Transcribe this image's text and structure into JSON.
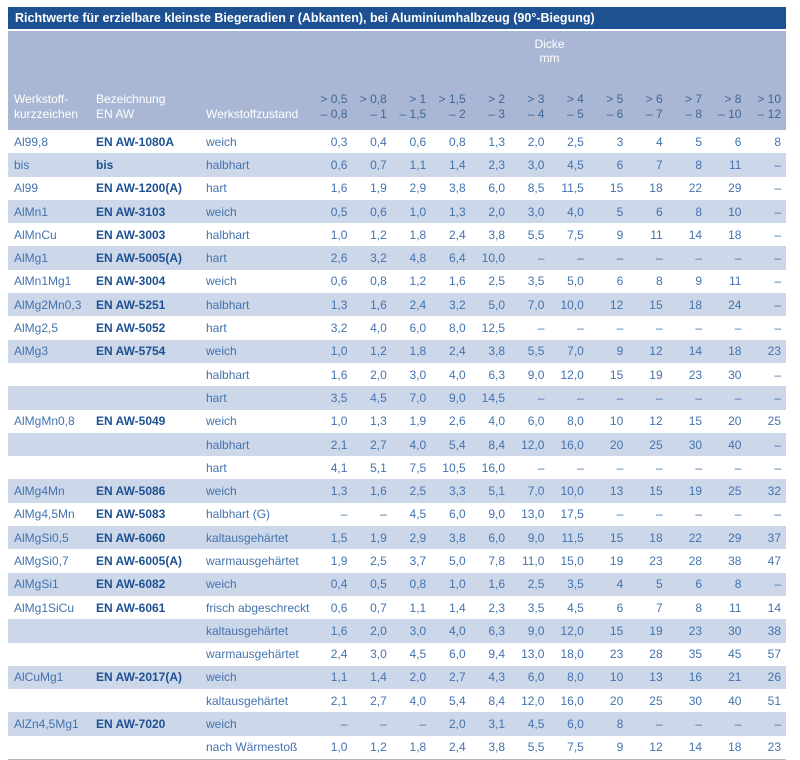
{
  "title": "Richtwerte für erzielbare kleinste Biegeradien r (Abkanten), bei Aluminiumhalbzeug (90°-Biegung)",
  "colors": {
    "title_bar_bg": "#1d5192",
    "title_text": "#ffffff",
    "header_band_bg": "#a9b7d4",
    "header_label_text": "#ffffff",
    "header_range_text": "#3f6798",
    "row_shaded_bg": "#cdd7ea",
    "row_plain_bg": "#ffffff",
    "body_text": "#4373ae",
    "bold_designation_text": "#1d5192",
    "bottom_rule": "#b0b7c3"
  },
  "table": {
    "group_header": {
      "line1": "Dicke",
      "line2": "mm"
    },
    "col_headers": {
      "alloy_line1": "Werkstoff-",
      "alloy_line2": "kurzzeichen",
      "designation_line1": "Bezeichnung",
      "designation_line2": "EN AW",
      "condition": "Werkstoffzustand"
    },
    "thickness_ranges": [
      {
        "gt": "> 0,5",
        "to": "– 0,8"
      },
      {
        "gt": "> 0,8",
        "to": "– 1"
      },
      {
        "gt": "> 1",
        "to": "– 1,5"
      },
      {
        "gt": "> 1,5",
        "to": "– 2"
      },
      {
        "gt": "> 2",
        "to": "– 3"
      },
      {
        "gt": "> 3",
        "to": "– 4"
      },
      {
        "gt": "> 4",
        "to": "– 5"
      },
      {
        "gt": "> 5",
        "to": "– 6"
      },
      {
        "gt": "> 6",
        "to": "– 7"
      },
      {
        "gt": "> 7",
        "to": "– 8"
      },
      {
        "gt": "> 8",
        "to": "– 10"
      },
      {
        "gt": "> 10",
        "to": "– 12"
      }
    ],
    "rows": [
      {
        "alloy": "Al99,8",
        "en_aw": "EN AW-1080A",
        "condition": "weich",
        "values": [
          "0,3",
          "0,4",
          "0,6",
          "0,8",
          "1,3",
          "2,0",
          "2,5",
          "3",
          "4",
          "5",
          "6",
          "8"
        ]
      },
      {
        "alloy": "bis",
        "en_aw": "bis",
        "condition": "halbhart",
        "values": [
          "0,6",
          "0,7",
          "1,1",
          "1,4",
          "2,3",
          "3,0",
          "4,5",
          "6",
          "7",
          "8",
          "11",
          "–"
        ]
      },
      {
        "alloy": "Al99",
        "en_aw": "EN AW-1200(A)",
        "condition": "hart",
        "values": [
          "1,6",
          "1,9",
          "2,9",
          "3,8",
          "6,0",
          "8,5",
          "11,5",
          "15",
          "18",
          "22",
          "29",
          "–"
        ]
      },
      {
        "alloy": "AlMn1",
        "en_aw": "EN AW-3103",
        "condition": "weich",
        "values": [
          "0,5",
          "0,6",
          "1,0",
          "1,3",
          "2,0",
          "3,0",
          "4,0",
          "5",
          "6",
          "8",
          "10",
          "–"
        ]
      },
      {
        "alloy": "AlMnCu",
        "en_aw": "EN AW-3003",
        "condition": "halbhart",
        "values": [
          "1,0",
          "1,2",
          "1,8",
          "2,4",
          "3,8",
          "5,5",
          "7,5",
          "9",
          "11",
          "14",
          "18",
          "–"
        ]
      },
      {
        "alloy": "AlMg1",
        "en_aw": "EN AW-5005(A)",
        "condition": "hart",
        "values": [
          "2,6",
          "3,2",
          "4,8",
          "6,4",
          "10,0",
          "–",
          "–",
          "–",
          "–",
          "–",
          "–",
          "–"
        ]
      },
      {
        "alloy": "AlMn1Mg1",
        "en_aw": "EN AW-3004",
        "condition": "weich",
        "values": [
          "0,6",
          "0,8",
          "1,2",
          "1,6",
          "2,5",
          "3,5",
          "5,0",
          "6",
          "8",
          "9",
          "11",
          "–"
        ]
      },
      {
        "alloy": "AlMg2Mn0,3",
        "en_aw": "EN AW-5251",
        "condition": "halbhart",
        "values": [
          "1,3",
          "1,6",
          "2,4",
          "3,2",
          "5,0",
          "7,0",
          "10,0",
          "12",
          "15",
          "18",
          "24",
          "–"
        ]
      },
      {
        "alloy": "AlMg2,5",
        "en_aw": "EN AW-5052",
        "condition": "hart",
        "values": [
          "3,2",
          "4,0",
          "6,0",
          "8,0",
          "12,5",
          "–",
          "–",
          "–",
          "–",
          "–",
          "–",
          "–"
        ]
      },
      {
        "alloy": "AlMg3",
        "en_aw": "EN AW-5754",
        "condition": "weich",
        "values": [
          "1,0",
          "1,2",
          "1,8",
          "2,4",
          "3,8",
          "5,5",
          "7,0",
          "9",
          "12",
          "14",
          "18",
          "23"
        ]
      },
      {
        "alloy": "",
        "en_aw": "",
        "condition": "halbhart",
        "values": [
          "1,6",
          "2,0",
          "3,0",
          "4,0",
          "6,3",
          "9,0",
          "12,0",
          "15",
          "19",
          "23",
          "30",
          "–"
        ]
      },
      {
        "alloy": "",
        "en_aw": "",
        "condition": "hart",
        "values": [
          "3,5",
          "4,5",
          "7,0",
          "9,0",
          "14,5",
          "–",
          "–",
          "–",
          "–",
          "–",
          "–",
          "–"
        ]
      },
      {
        "alloy": "AlMgMn0,8",
        "en_aw": "EN AW-5049",
        "condition": "weich",
        "values": [
          "1,0",
          "1,3",
          "1,9",
          "2,6",
          "4,0",
          "6,0",
          "8,0",
          "10",
          "12",
          "15",
          "20",
          "25"
        ]
      },
      {
        "alloy": "",
        "en_aw": "",
        "condition": "halbhart",
        "values": [
          "2,1",
          "2,7",
          "4,0",
          "5,4",
          "8,4",
          "12,0",
          "16,0",
          "20",
          "25",
          "30",
          "40",
          "–"
        ]
      },
      {
        "alloy": "",
        "en_aw": "",
        "condition": "hart",
        "values": [
          "4,1",
          "5,1",
          "7,5",
          "10,5",
          "16,0",
          "–",
          "–",
          "–",
          "–",
          "–",
          "–",
          "–"
        ]
      },
      {
        "alloy": "AlMg4Mn",
        "en_aw": "EN AW-5086",
        "condition": "weich",
        "values": [
          "1,3",
          "1,6",
          "2,5",
          "3,3",
          "5,1",
          "7,0",
          "10,0",
          "13",
          "15",
          "19",
          "25",
          "32"
        ]
      },
      {
        "alloy": "AlMg4,5Mn",
        "en_aw": "EN AW-5083",
        "condition": "halbhart (G)",
        "values": [
          "–",
          "–",
          "4,5",
          "6,0",
          "9,0",
          "13,0",
          "17,5",
          "–",
          "–",
          "–",
          "–",
          "–"
        ]
      },
      {
        "alloy": "AlMgSi0,5",
        "en_aw": "EN AW-6060",
        "condition": "kaltausgehärtet",
        "values": [
          "1,5",
          "1,9",
          "2,9",
          "3,8",
          "6,0",
          "9,0",
          "11,5",
          "15",
          "18",
          "22",
          "29",
          "37"
        ]
      },
      {
        "alloy": "AlMgSi0,7",
        "en_aw": "EN AW-6005(A)",
        "condition": "warmausgehärtet",
        "values": [
          "1,9",
          "2,5",
          "3,7",
          "5,0",
          "7,8",
          "11,0",
          "15,0",
          "19",
          "23",
          "28",
          "38",
          "47"
        ]
      },
      {
        "alloy": "AlMgSi1",
        "en_aw": "EN AW-6082",
        "condition": "weich",
        "values": [
          "0,4",
          "0,5",
          "0,8",
          "1,0",
          "1,6",
          "2,5",
          "3,5",
          "4",
          "5",
          "6",
          "8",
          "–"
        ]
      },
      {
        "alloy": "AlMg1SiCu",
        "en_aw": "EN AW-6061",
        "condition": "frisch abgeschreckt",
        "values": [
          "0,6",
          "0,7",
          "1,1",
          "1,4",
          "2,3",
          "3,5",
          "4,5",
          "6",
          "7",
          "8",
          "11",
          "14"
        ]
      },
      {
        "alloy": "",
        "en_aw": "",
        "condition": "kaltausgehärtet",
        "values": [
          "1,6",
          "2,0",
          "3,0",
          "4,0",
          "6,3",
          "9,0",
          "12,0",
          "15",
          "19",
          "23",
          "30",
          "38"
        ]
      },
      {
        "alloy": "",
        "en_aw": "",
        "condition": "warmausgehärtet",
        "values": [
          "2,4",
          "3,0",
          "4,5",
          "6,0",
          "9,4",
          "13,0",
          "18,0",
          "23",
          "28",
          "35",
          "45",
          "57"
        ]
      },
      {
        "alloy": "AlCuMg1",
        "en_aw": "EN AW-2017(A)",
        "condition": "weich",
        "values": [
          "1,1",
          "1,4",
          "2,0",
          "2,7",
          "4,3",
          "6,0",
          "8,0",
          "10",
          "13",
          "16",
          "21",
          "26"
        ]
      },
      {
        "alloy": "",
        "en_aw": "",
        "condition": "kaltausgehärtet",
        "values": [
          "2,1",
          "2,7",
          "4,0",
          "5,4",
          "8,4",
          "12,0",
          "16,0",
          "20",
          "25",
          "30",
          "40",
          "51"
        ]
      },
      {
        "alloy": "AlZn4,5Mg1",
        "en_aw": "EN AW-7020",
        "condition": "weich",
        "values": [
          "–",
          "–",
          "–",
          "2,0",
          "3,1",
          "4,5",
          "6,0",
          "8",
          "–",
          "–",
          "–",
          "–"
        ]
      },
      {
        "alloy": "",
        "en_aw": "",
        "condition": "nach Wärmestoß",
        "values": [
          "1,0",
          "1,2",
          "1,8",
          "2,4",
          "3,8",
          "5,5",
          "7,5",
          "9",
          "12",
          "14",
          "18",
          "23"
        ]
      }
    ]
  }
}
